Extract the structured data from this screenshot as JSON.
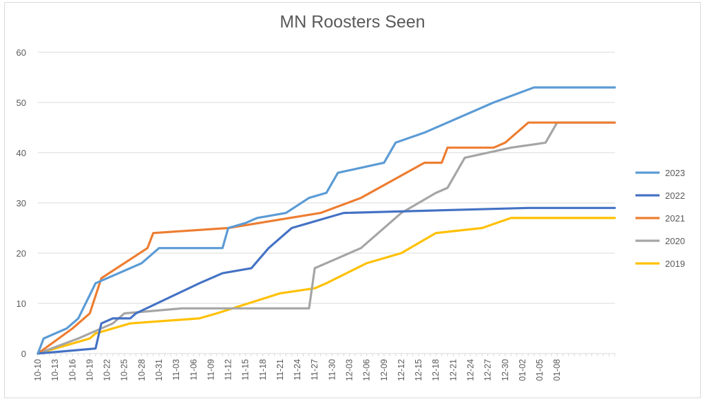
{
  "chart_data": {
    "type": "line",
    "title": "MN Roosters Seen",
    "xlabel": "",
    "ylabel": "",
    "ylim": [
      0,
      60
    ],
    "yticks": [
      0,
      10,
      20,
      30,
      40,
      50,
      60
    ],
    "grid": true,
    "legend_position": "right",
    "x_tick_labels": [
      "10-10",
      "10-13",
      "10-16",
      "10-19",
      "10-22",
      "10-25",
      "10-28",
      "10-31",
      "11-03",
      "11-06",
      "11-09",
      "11-12",
      "11-15",
      "11-18",
      "11-21",
      "11-24",
      "11-27",
      "11-30",
      "12-03",
      "12-06",
      "12-09",
      "12-12",
      "12-15",
      "12-18",
      "12-21",
      "12-24",
      "12-27",
      "12-30",
      "01-02",
      "01-05",
      "01-08"
    ],
    "series": [
      {
        "name": "2023",
        "color": "#5b9bd5",
        "steps": [
          [
            0,
            0
          ],
          [
            1,
            3
          ],
          [
            5,
            5
          ],
          [
            7,
            7
          ],
          [
            10,
            14
          ],
          [
            18,
            18
          ],
          [
            21,
            21
          ],
          [
            32,
            21
          ],
          [
            33,
            25
          ],
          [
            36,
            26
          ],
          [
            38,
            27
          ],
          [
            43,
            28
          ],
          [
            47,
            31
          ],
          [
            50,
            32
          ],
          [
            52,
            36
          ],
          [
            60,
            38
          ],
          [
            62,
            42
          ],
          [
            67,
            44
          ],
          [
            79,
            50
          ],
          [
            86,
            53
          ],
          [
            100,
            53
          ]
        ]
      },
      {
        "name": "2022",
        "color": "#4472c4",
        "steps": [
          [
            0,
            0
          ],
          [
            10,
            1
          ],
          [
            11,
            6
          ],
          [
            13,
            7
          ],
          [
            16,
            7
          ],
          [
            17,
            8
          ],
          [
            28,
            14
          ],
          [
            32,
            16
          ],
          [
            37,
            17
          ],
          [
            40,
            21
          ],
          [
            44,
            25
          ],
          [
            47,
            26
          ],
          [
            50,
            27
          ],
          [
            53,
            28
          ],
          [
            85,
            29
          ],
          [
            100,
            29
          ]
        ]
      },
      {
        "name": "2021",
        "color": "#ed7d31",
        "steps": [
          [
            0,
            0
          ],
          [
            6,
            5
          ],
          [
            9,
            8
          ],
          [
            11,
            15
          ],
          [
            19,
            21
          ],
          [
            20,
            24
          ],
          [
            33,
            25
          ],
          [
            49,
            28
          ],
          [
            56,
            31
          ],
          [
            67,
            38
          ],
          [
            70,
            38
          ],
          [
            71,
            41
          ],
          [
            79,
            41
          ],
          [
            81,
            42
          ],
          [
            85,
            46
          ],
          [
            92,
            46
          ],
          [
            100,
            46
          ]
        ]
      },
      {
        "name": "2020",
        "color": "#a5a5a5",
        "steps": [
          [
            0,
            0
          ],
          [
            7,
            3
          ],
          [
            9,
            4
          ],
          [
            13,
            6
          ],
          [
            15,
            8
          ],
          [
            25,
            9
          ],
          [
            47,
            9
          ],
          [
            48,
            17
          ],
          [
            56,
            21
          ],
          [
            59,
            24
          ],
          [
            63,
            28
          ],
          [
            66,
            30
          ],
          [
            69,
            32
          ],
          [
            71,
            33
          ],
          [
            74,
            39
          ],
          [
            82,
            41
          ],
          [
            88,
            42
          ],
          [
            90,
            46
          ],
          [
            100,
            46
          ]
        ]
      },
      {
        "name": "2019",
        "color": "#ffc000",
        "steps": [
          [
            0,
            0
          ],
          [
            3,
            1
          ],
          [
            9,
            3
          ],
          [
            10,
            4
          ],
          [
            16,
            6
          ],
          [
            28,
            7
          ],
          [
            31,
            8
          ],
          [
            42,
            12
          ],
          [
            48,
            13
          ],
          [
            50,
            14
          ],
          [
            57,
            18
          ],
          [
            63,
            20
          ],
          [
            69,
            24
          ],
          [
            77,
            25
          ],
          [
            82,
            27
          ],
          [
            100,
            27
          ]
        ]
      }
    ]
  }
}
